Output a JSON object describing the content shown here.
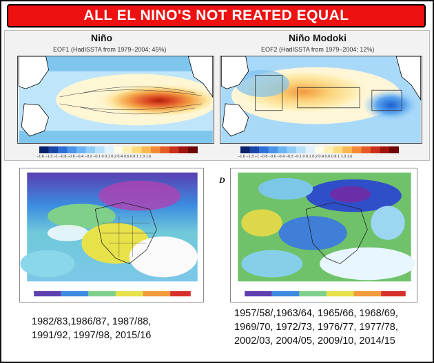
{
  "banner": {
    "title": "ALL EL NINO'S NOT REATED EQUAL"
  },
  "nino": {
    "label": "Niño",
    "map_title": "EOF1 (HadISSTA from 1979–2004; 45%)",
    "colorbar_ticks": "−1.6 −1.3 −1 −0.8 −0.6 −0.4 −0.2 −0.1  0  0.1  0.2  0.4  0.6  0.8  1  1.3  1.6"
  },
  "modoki": {
    "label": "Niño Modoki",
    "map_title": "EOF2 (HadISSTA from 1979–2004; 12%)",
    "colorbar_ticks": "−1.6 −1.3 −1 −0.8 −0.6 −0.4 −0.2 −0.1  0  0.1  0.2  0.4  0.6  0.8  1  1.3  1.6"
  },
  "bottom_left": {
    "years_line1": "1982/83,1986/87, 1987/88,",
    "years_line2": "1991/92, 1997/98, 2015/16"
  },
  "bottom_right": {
    "panel_letter": "D",
    "years_line1": "1957/58/,1963/64, 1965/66, 1968/69,",
    "years_line2": "1969/70, 1972/73, 1976/77, 1977/78,",
    "years_line3": "2002/03, 2004/05, 2009/10, 2014/15"
  },
  "colors": {
    "banner_red": "#ee1111",
    "warm": "#d94a1e",
    "cool": "#3a7fd5"
  }
}
